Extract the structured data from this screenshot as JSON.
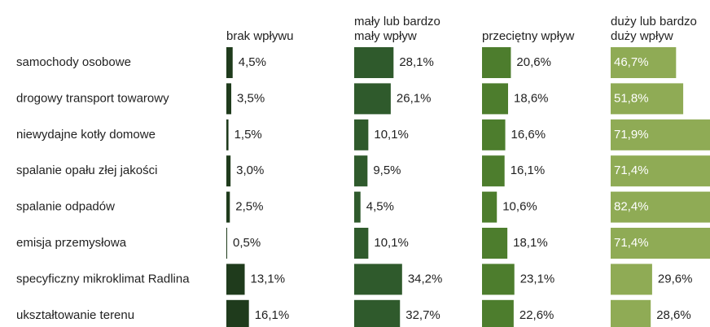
{
  "chart_data": {
    "type": "bar",
    "categories": [
      "samochody osobowe",
      "drogowy transport towarowy",
      "niewydajne kotły domowe",
      "spalanie opału złej jakości",
      "spalanie odpadów",
      "emisja przemysłowa",
      "specyficzny mikroklimat Radlina",
      "ukształtowanie terenu"
    ],
    "series": [
      {
        "name": "brak wpływu",
        "color": "#1f3b1c",
        "values": [
          4.5,
          3.5,
          1.5,
          3.0,
          2.5,
          0.5,
          13.1,
          16.1
        ],
        "value_labels": [
          "4,5%",
          "3,5%",
          "1,5%",
          "3,0%",
          "2,5%",
          "0,5%",
          "13,1%",
          "16,1%"
        ]
      },
      {
        "name": "mały lub bardzo mały wpływ",
        "color": "#2f5a2c",
        "values": [
          28.1,
          26.1,
          10.1,
          9.5,
          4.5,
          10.1,
          34.2,
          32.7
        ],
        "value_labels": [
          "28,1%",
          "26,1%",
          "10,1%",
          "9,5%",
          "4,5%",
          "10,1%",
          "34,2%",
          "32,7%"
        ]
      },
      {
        "name": "przeciętny wpływ",
        "color": "#4d7d2d",
        "values": [
          20.6,
          18.6,
          16.6,
          16.1,
          10.6,
          18.1,
          23.1,
          22.6
        ],
        "value_labels": [
          "20,6%",
          "18,6%",
          "16,6%",
          "16,1%",
          "10,6%",
          "18,1%",
          "23,1%",
          "22,6%"
        ]
      },
      {
        "name": "duży lub bardzo duży wpływ",
        "color": "#8fab55",
        "values": [
          46.7,
          51.8,
          71.9,
          71.4,
          82.4,
          71.4,
          29.6,
          28.6
        ],
        "value_labels": [
          "46,7%",
          "51,8%",
          "71,9%",
          "71,4%",
          "82,4%",
          "71,4%",
          "29,6%",
          "28,6%"
        ]
      }
    ]
  }
}
